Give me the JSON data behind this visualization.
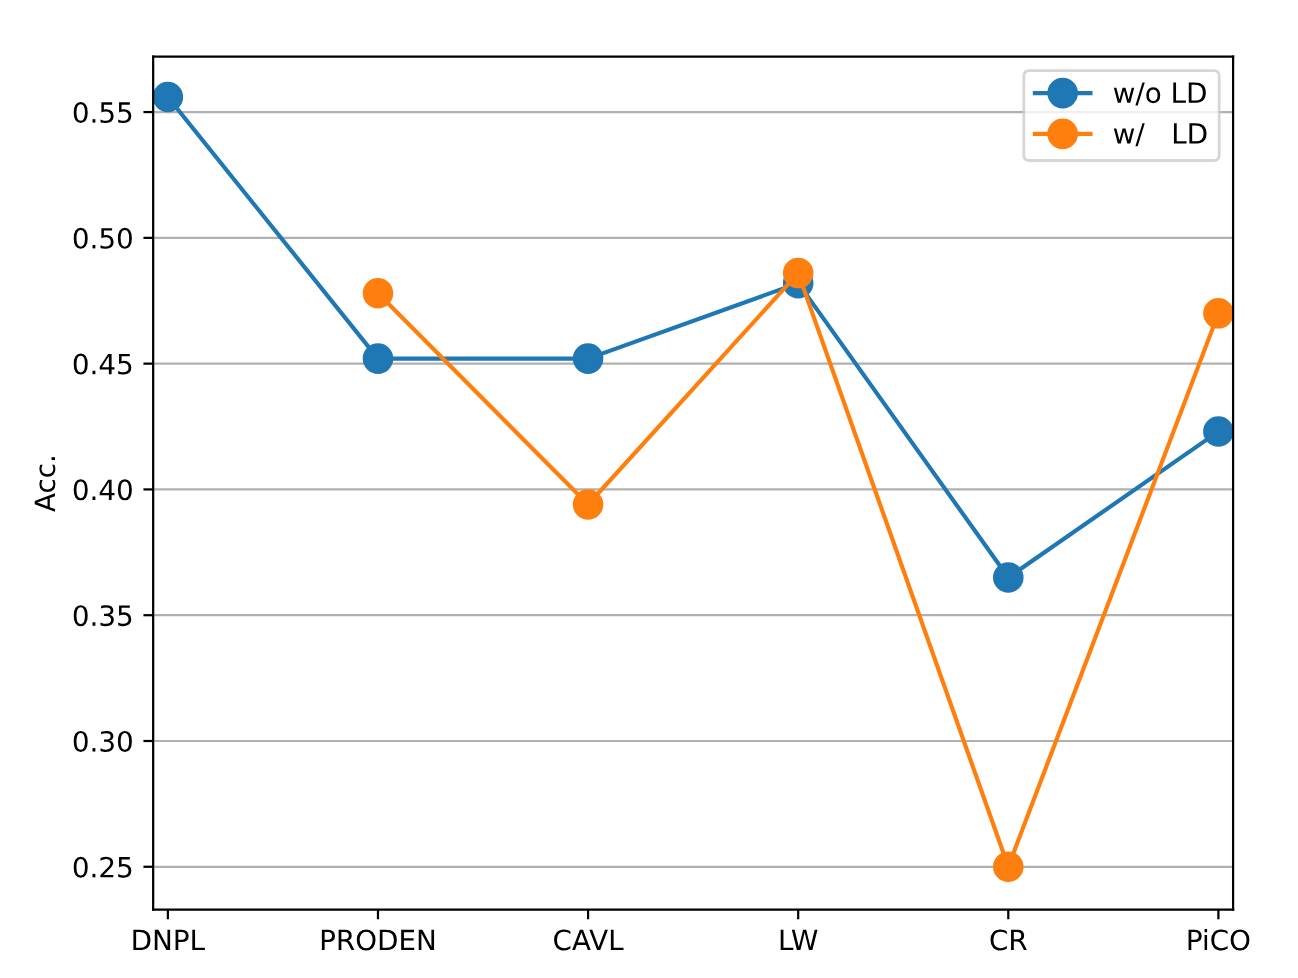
{
  "chart_data": {
    "type": "line",
    "ylabel": "Acc.",
    "categories": [
      "DNPL",
      "PRODEN",
      "CAVL",
      "LW",
      "CR",
      "PiCO"
    ],
    "series": [
      {
        "name": "w/o LD",
        "color": "#1f77b4",
        "values": [
          0.556,
          0.452,
          0.452,
          0.482,
          0.365,
          0.423
        ]
      },
      {
        "name": "w/   LD",
        "color": "#ff7f0e",
        "values": [
          null,
          0.478,
          0.394,
          0.486,
          0.25,
          0.47
        ]
      }
    ],
    "ylim": [
      0.233,
      0.572
    ],
    "yticks": [
      0.25,
      {
        "value": 0.3,
        "label": "0.30"
      },
      0.35,
      {
        "value": 0.4,
        "label": "0.40"
      },
      0.45,
      {
        "value": 0.5,
        "label": "0.50"
      },
      0.55
    ],
    "grid": "y",
    "legend": "top right",
    "marker": "circle",
    "line_style": "solid"
  }
}
